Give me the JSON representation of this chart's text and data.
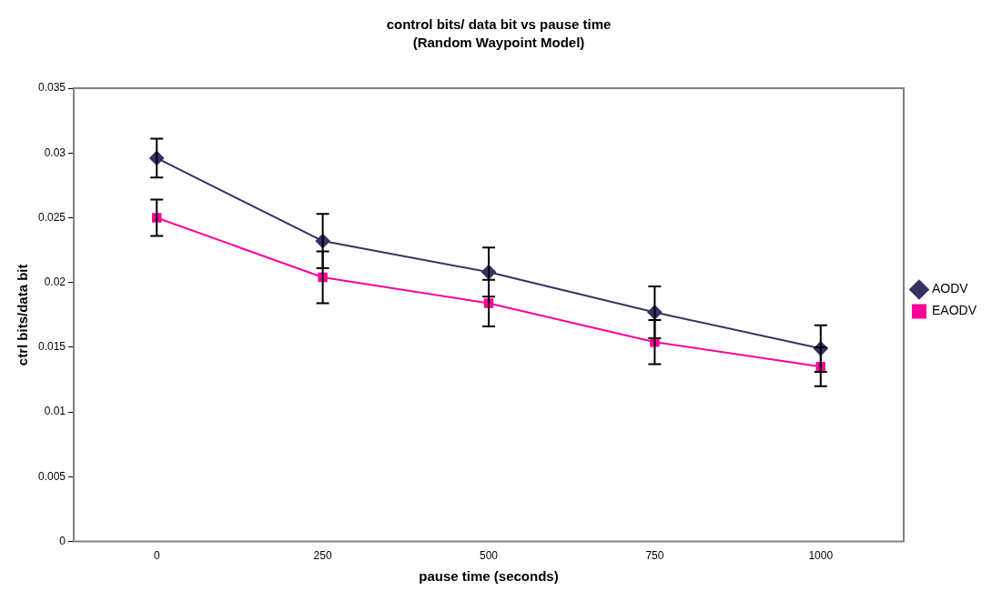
{
  "chart_data": {
    "type": "line",
    "title": "control bits/ data bit vs pause time",
    "subtitle": "(Random Waypoint Model)",
    "xlabel": "pause time (seconds)",
    "ylabel": "ctrl bits/data bit",
    "categories": [
      "0",
      "250",
      "500",
      "750",
      "1000"
    ],
    "series": [
      {
        "name": "AODV",
        "color": "#333366",
        "marker": "diamond",
        "values": [
          0.0296,
          0.0232,
          0.0208,
          0.0177,
          0.0149
        ],
        "errors": [
          0.0015,
          0.0021,
          0.0019,
          0.002,
          0.0018
        ]
      },
      {
        "name": "EAODV",
        "color": "#ff0099",
        "marker": "square",
        "values": [
          0.025,
          0.0204,
          0.0184,
          0.0154,
          0.0135
        ],
        "errors": [
          0.0014,
          0.002,
          0.0018,
          0.0017,
          0.0015
        ]
      }
    ],
    "ylim": [
      0,
      0.035
    ],
    "yticks": [
      0,
      0.005,
      0.01,
      0.015,
      0.02,
      0.025,
      0.03,
      0.035
    ],
    "grid": false,
    "legend": "right",
    "line_style": "solid"
  }
}
